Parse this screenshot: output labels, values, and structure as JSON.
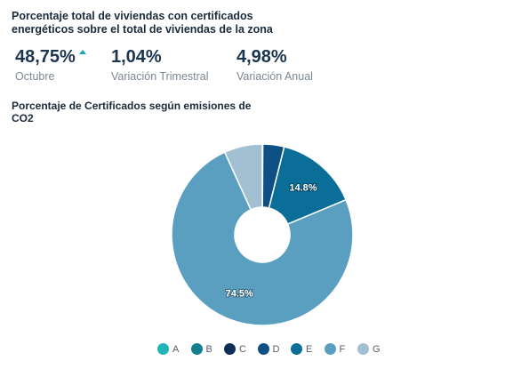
{
  "header": {
    "title": "Porcentaje total de viviendas con certificados energéticos sobre el total de viviendas de la zona"
  },
  "stats": [
    {
      "value": "48,75%",
      "label": "Octubre",
      "trend": "up"
    },
    {
      "value": "1,04%",
      "label": "Variación Trimestral"
    },
    {
      "value": "4,98%",
      "label": "Variación Anual"
    }
  ],
  "colors": {
    "A": "#1fb5b8",
    "B": "#137f8f",
    "C": "#0c2f57",
    "D": "#0e4f84",
    "E": "#0a6e98",
    "F": "#5a9fc0",
    "G": "#a3bfd2",
    "trend_up": "#1aa7b5"
  },
  "chart_data": {
    "type": "pie",
    "title": "Porcentaje de Certificados según emisiones de CO2",
    "donut": true,
    "legend_position": "bottom",
    "categories": [
      "A",
      "B",
      "C",
      "D",
      "E",
      "F",
      "G"
    ],
    "values": [
      0,
      0,
      0.1,
      3.8,
      14.8,
      74.5,
      6.8
    ],
    "data_labels": [
      "",
      "",
      "",
      "",
      "14.8%",
      "74.5%",
      ""
    ]
  }
}
